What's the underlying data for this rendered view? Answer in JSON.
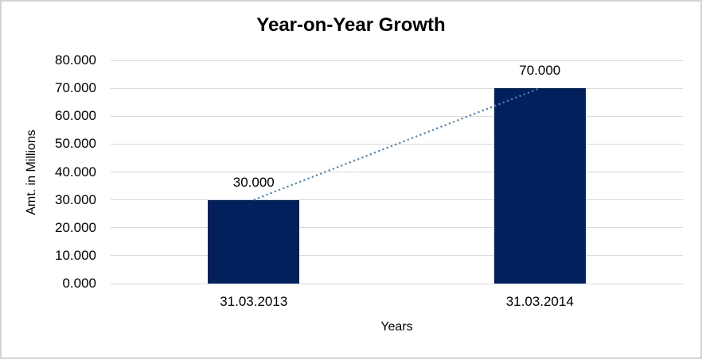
{
  "chart_data": {
    "type": "bar",
    "title": "Year-on-Year Growth",
    "xlabel": "Years",
    "ylabel": "Amt. in Millions",
    "categories": [
      "31.03.2013",
      "31.03.2014"
    ],
    "values": [
      30,
      70
    ],
    "value_labels": [
      "30.000",
      "70.000"
    ],
    "ylim": [
      0,
      80
    ],
    "yticks": [
      0,
      10,
      20,
      30,
      40,
      50,
      60,
      70,
      80
    ],
    "ytick_labels": [
      "0.000",
      "10.000",
      "20.000",
      "30.000",
      "40.000",
      "50.000",
      "60.000",
      "70.000",
      "80.000"
    ],
    "grid": true,
    "legend": false,
    "trendline": {
      "style": "dotted",
      "from": [
        0,
        30
      ],
      "to": [
        1,
        70
      ]
    },
    "colors": {
      "bar": "#02215c",
      "trendline": "#4f81bd",
      "gridline": "#d9d9d9",
      "text": "#000000",
      "background": "#ffffff",
      "border": "#d3d3d3"
    }
  }
}
